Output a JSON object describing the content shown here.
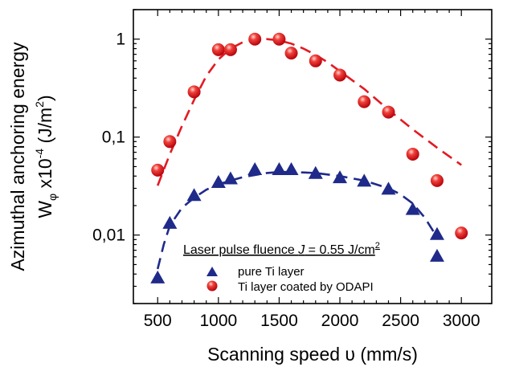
{
  "chart_data": {
    "type": "scatter",
    "xlabel": "Scanning speed υ (mm/s)",
    "ylabel_line1": "Azimuthal anchoring energy",
    "ylabel_line2": {
      "prefix": "W",
      "subscript": "φ",
      "middle": " x10",
      "exponent": "-4",
      "suffix": " (J/m",
      "unit_exponent": "2",
      "close": ")"
    },
    "x_ticks": [
      "500",
      "1000",
      "1500",
      "2000",
      "2500",
      "3000"
    ],
    "x_tick_values": [
      500,
      1000,
      1500,
      2000,
      2500,
      3000
    ],
    "y_ticks": [
      "0,01",
      "0,1",
      "1"
    ],
    "y_tick_values": [
      0.01,
      0.1,
      1
    ],
    "xlim": [
      300,
      3250
    ],
    "ylim": [
      0.002,
      2
    ],
    "y_scale": "log",
    "grid": false,
    "legend_position": "bottom-center",
    "legend": {
      "title_prefix": "Laser pulse fluence ",
      "title_symbol": "J",
      "title_value": " = 0.55 J/cm",
      "title_exponent": "2",
      "entries": [
        "pure Ti layer",
        "Ti layer coated by ODAPI"
      ]
    },
    "series": [
      {
        "name": "pure Ti layer",
        "marker": "triangle",
        "color": "#1f2a8a",
        "points": [
          [
            500,
            0.0036
          ],
          [
            600,
            0.013
          ],
          [
            800,
            0.025
          ],
          [
            1000,
            0.034
          ],
          [
            1100,
            0.037
          ],
          [
            1300,
            0.046
          ],
          [
            1500,
            0.046
          ],
          [
            1600,
            0.046
          ],
          [
            1800,
            0.042
          ],
          [
            2000,
            0.038
          ],
          [
            2200,
            0.035
          ],
          [
            2400,
            0.029
          ],
          [
            2600,
            0.018
          ],
          [
            2800,
            0.01
          ],
          [
            2800,
            0.006
          ]
        ],
        "fit": [
          [
            500,
            0.0045
          ],
          [
            550,
            0.008
          ],
          [
            600,
            0.0125
          ],
          [
            700,
            0.019
          ],
          [
            800,
            0.024
          ],
          [
            900,
            0.029
          ],
          [
            1000,
            0.033
          ],
          [
            1100,
            0.036
          ],
          [
            1200,
            0.039
          ],
          [
            1300,
            0.041
          ],
          [
            1400,
            0.043
          ],
          [
            1500,
            0.044
          ],
          [
            1600,
            0.044
          ],
          [
            1800,
            0.043
          ],
          [
            2000,
            0.04
          ],
          [
            2200,
            0.036
          ],
          [
            2400,
            0.03
          ],
          [
            2500,
            0.026
          ],
          [
            2600,
            0.021
          ],
          [
            2700,
            0.015
          ],
          [
            2800,
            0.0095
          ]
        ],
        "fit_color": "#1f2a8a"
      },
      {
        "name": "Ti layer coated by ODAPI",
        "marker": "sphere",
        "color": "#e21b23",
        "points": [
          [
            500,
            0.046
          ],
          [
            600,
            0.09
          ],
          [
            800,
            0.29
          ],
          [
            1000,
            0.78
          ],
          [
            1100,
            0.78
          ],
          [
            1300,
            1.0
          ],
          [
            1500,
            1.0
          ],
          [
            1600,
            0.72
          ],
          [
            1800,
            0.6
          ],
          [
            2000,
            0.43
          ],
          [
            2200,
            0.23
          ],
          [
            2400,
            0.18
          ],
          [
            2600,
            0.067
          ],
          [
            2800,
            0.036
          ],
          [
            3000,
            0.0105
          ]
        ],
        "fit": [
          [
            500,
            0.032
          ],
          [
            600,
            0.067
          ],
          [
            700,
            0.13
          ],
          [
            800,
            0.24
          ],
          [
            900,
            0.42
          ],
          [
            1000,
            0.62
          ],
          [
            1100,
            0.8
          ],
          [
            1200,
            0.93
          ],
          [
            1300,
            0.99
          ],
          [
            1400,
            1.0
          ],
          [
            1500,
            0.97
          ],
          [
            1600,
            0.9
          ],
          [
            1700,
            0.8
          ],
          [
            1800,
            0.69
          ],
          [
            1900,
            0.58
          ],
          [
            2000,
            0.47
          ],
          [
            2200,
            0.31
          ],
          [
            2400,
            0.19
          ],
          [
            2600,
            0.12
          ],
          [
            2800,
            0.078
          ],
          [
            3000,
            0.052
          ]
        ],
        "fit_color": "#e21b23"
      }
    ]
  }
}
